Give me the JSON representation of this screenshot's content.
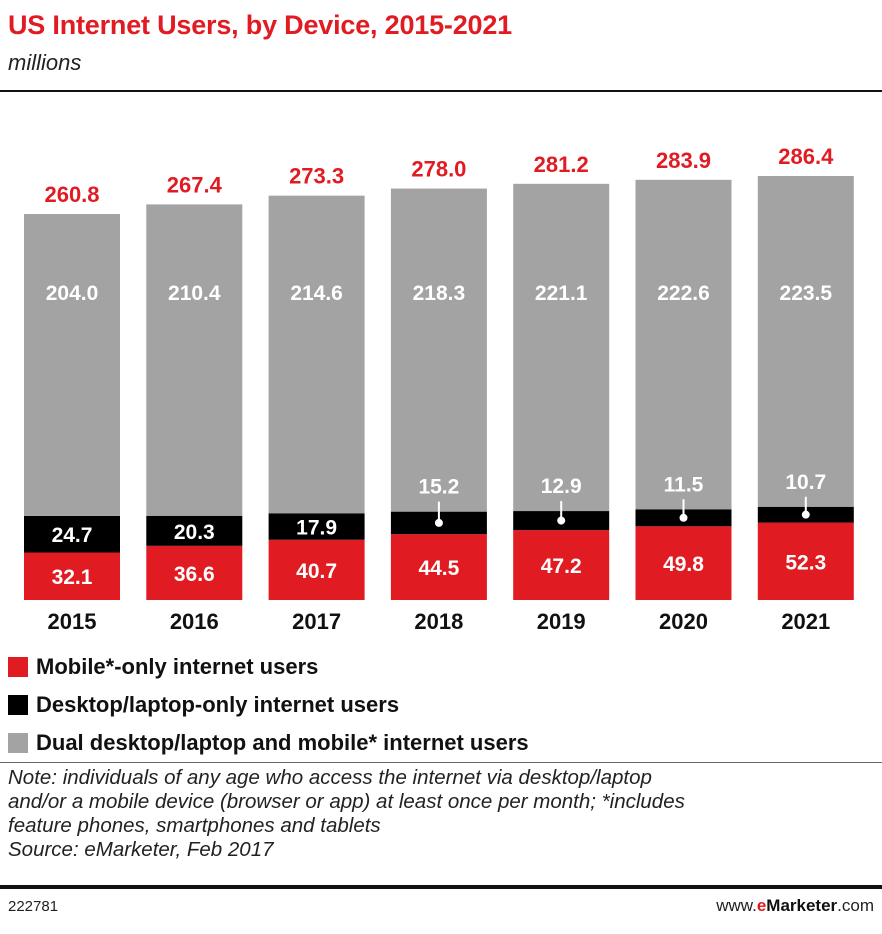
{
  "title": "US Internet Users, by Device, 2015-2021",
  "subtitle": "millions",
  "colors": {
    "mobile": "#e11b22",
    "desktop": "#000000",
    "dual": "#a3a3a3",
    "total_label": "#e11b22"
  },
  "chart_data": {
    "type": "bar",
    "stacked": true,
    "title": "US Internet Users, by Device, 2015-2021",
    "ylabel": "millions",
    "categories": [
      "2015",
      "2016",
      "2017",
      "2018",
      "2019",
      "2020",
      "2021"
    ],
    "series": [
      {
        "name": "Mobile*-only internet users",
        "key": "mobile",
        "values": [
          32.1,
          36.6,
          40.7,
          44.5,
          47.2,
          49.8,
          52.3
        ]
      },
      {
        "name": "Desktop/laptop-only internet users",
        "key": "desktop",
        "values": [
          24.7,
          20.3,
          17.9,
          15.2,
          12.9,
          11.5,
          10.7
        ]
      },
      {
        "name": "Dual desktop/laptop and mobile* internet users",
        "key": "dual",
        "values": [
          204.0,
          210.4,
          214.6,
          218.3,
          221.1,
          222.6,
          223.5
        ]
      }
    ],
    "totals": [
      260.8,
      267.4,
      273.3,
      278.0,
      281.2,
      283.9,
      286.4
    ],
    "ylim": [
      0,
      300
    ],
    "grid": false
  },
  "legend": [
    {
      "label": "Mobile*-only internet users",
      "key": "mobile"
    },
    {
      "label": "Desktop/laptop-only internet users",
      "key": "desktop"
    },
    {
      "label": "Dual desktop/laptop and mobile* internet users",
      "key": "dual"
    }
  ],
  "note": {
    "line1": "Note: individuals of any age who access the internet via desktop/laptop",
    "line2": "and/or a mobile device (browser or app) at least once per month; *includes",
    "line3": "feature phones, smartphones and tablets",
    "source": "Source: eMarketer, Feb 2017"
  },
  "footer": {
    "chart_id": "222781",
    "brand_prefix": "www.",
    "brand_e": "e",
    "brand_name": "Marketer",
    "brand_suffix": ".com"
  }
}
